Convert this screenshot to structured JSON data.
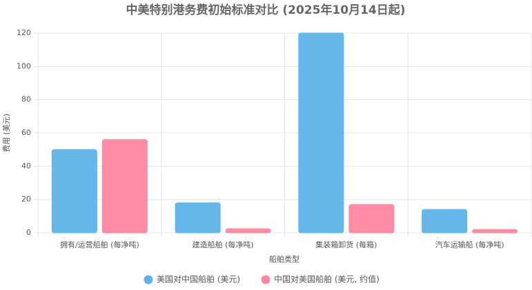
{
  "chart_data": {
    "type": "bar",
    "title": "中美特别港务费初始标准对比 (2025年10月14日起)",
    "x_label": "船舶类型",
    "y_label": "费用 (美元)",
    "categories": [
      "拥有/运营船舶 (每净吨)",
      "建造船舶 (每净吨)",
      "集装箱卸货 (每箱)",
      "汽车运输船 (每净吨)"
    ],
    "series": [
      {
        "name": "美国对中国船舶 (美元)",
        "color": "#5eb4ea",
        "values": [
          50,
          18,
          120,
          14
        ]
      },
      {
        "name": "中国对美国船舶 (美元, 约值)",
        "color": "#ff869f",
        "values": [
          56,
          2.5,
          17,
          2
        ]
      }
    ],
    "ylim": [
      0,
      120
    ],
    "yticks": [
      0,
      20,
      40,
      60,
      80,
      100,
      120
    ],
    "grid": true,
    "legend": "bottom"
  }
}
